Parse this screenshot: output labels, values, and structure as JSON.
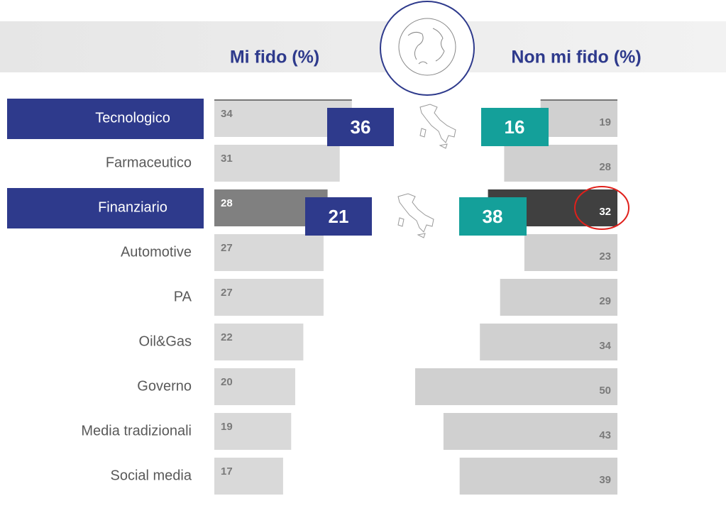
{
  "chart_data": {
    "type": "butterfly",
    "categories": [
      "Tecnologico",
      "Farmaceutico",
      "Finanziario",
      "Automotive",
      "PA",
      "Oil&Gas",
      "Governo",
      "Media tradizionali",
      "Social media"
    ],
    "series": [
      {
        "name": "Mi fido (%)",
        "color": "#d9d9d9",
        "values": [
          34,
          31,
          28,
          27,
          27,
          22,
          20,
          19,
          17
        ]
      },
      {
        "name": "Non mi fido (%)",
        "color": "#d0d0d0",
        "values": [
          19,
          28,
          32,
          23,
          29,
          34,
          50,
          43,
          39
        ]
      }
    ],
    "highlighted_categories": [
      0,
      2
    ],
    "highlight_color": "#2e3a8c",
    "dark_category": 2,
    "dark_colors": [
      "#808080",
      "#404040"
    ],
    "callouts": [
      {
        "category": 0,
        "values": [
          36,
          16
        ]
      },
      {
        "category": 2,
        "values": [
          21,
          38
        ]
      }
    ],
    "callout_colors": [
      "#2e3a8c",
      "#14a09a"
    ]
  }
}
